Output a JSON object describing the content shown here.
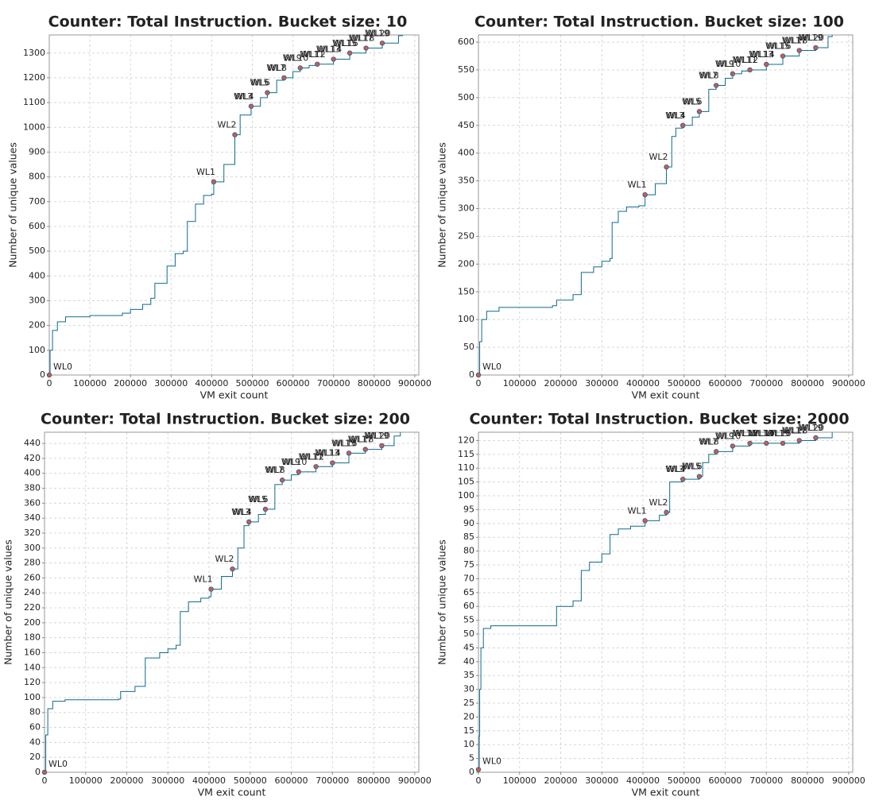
{
  "chart_data": [
    {
      "type": "line",
      "step": true,
      "title": "Counter: Total Instruction. Bucket size: 10",
      "x_label": "VM exit count",
      "y_label": "Number of unique values",
      "color": "#0e6b8c",
      "grid": true,
      "xlim": [
        0,
        910000
      ],
      "xticks": [
        0,
        100000,
        200000,
        300000,
        400000,
        500000,
        600000,
        700000,
        800000,
        900000
      ],
      "ylim": [
        0,
        1373
      ],
      "yticks": [
        0,
        100,
        200,
        300,
        400,
        500,
        600,
        700,
        800,
        900,
        1000,
        1100,
        1200,
        1300
      ],
      "x": [
        0,
        2000,
        8000,
        20000,
        40000,
        100000,
        180000,
        200000,
        230000,
        250000,
        260000,
        290000,
        310000,
        330000,
        340000,
        360000,
        380000,
        400000,
        405000,
        430000,
        457000,
        470000,
        497000,
        520000,
        537000,
        560000,
        578000,
        600000,
        618000,
        640000,
        660000,
        700000,
        740000,
        780000,
        820000,
        860000,
        870000
      ],
      "values": [
        0,
        100,
        180,
        215,
        235,
        240,
        250,
        265,
        285,
        310,
        370,
        440,
        490,
        500,
        620,
        690,
        725,
        730,
        780,
        850,
        970,
        1050,
        1085,
        1120,
        1140,
        1190,
        1200,
        1225,
        1240,
        1250,
        1255,
        1275,
        1300,
        1320,
        1340,
        1370,
        1373
      ],
      "markers": {
        "color": "#d9534f",
        "x": [
          0,
          405000,
          457000,
          497000,
          537000,
          578000,
          618000,
          660000,
          700000,
          740000,
          780000,
          820000
        ],
        "values": [
          0,
          780,
          970,
          1085,
          1140,
          1200,
          1240,
          1255,
          1275,
          1300,
          1320,
          1340
        ],
        "labels": [
          [
            "WL0"
          ],
          [
            "WL1"
          ],
          [
            "WL2"
          ],
          [
            "WL3",
            "WL4"
          ],
          [
            "WL5",
            "WL6"
          ],
          [
            "WL7",
            "WL8"
          ],
          [
            "WL9",
            "WL10"
          ],
          [
            "WL11",
            "WL12"
          ],
          [
            "WL13",
            "WL14"
          ],
          [
            "WL15",
            "WL16"
          ],
          [
            "WL17",
            "WL18"
          ],
          [
            "WL19",
            "WL20"
          ]
        ]
      }
    },
    {
      "type": "line",
      "step": true,
      "title": "Counter: Total Instruction. Bucket size: 100",
      "x_label": "VM exit count",
      "y_label": "Number of unique values",
      "color": "#0e6b8c",
      "grid": true,
      "xlim": [
        0,
        910000
      ],
      "xticks": [
        0,
        100000,
        200000,
        300000,
        400000,
        500000,
        600000,
        700000,
        800000,
        900000
      ],
      "ylim": [
        0,
        613
      ],
      "yticks": [
        0,
        50,
        100,
        150,
        200,
        250,
        300,
        350,
        400,
        450,
        500,
        550,
        600
      ],
      "x": [
        0,
        3000,
        8000,
        20000,
        50000,
        180000,
        190000,
        230000,
        250000,
        280000,
        300000,
        320000,
        325000,
        340000,
        360000,
        390000,
        405000,
        430000,
        457000,
        470000,
        480000,
        497000,
        520000,
        537000,
        560000,
        578000,
        600000,
        618000,
        640000,
        660000,
        700000,
        740000,
        780000,
        820000,
        850000,
        860000
      ],
      "values": [
        0,
        60,
        100,
        115,
        122,
        125,
        135,
        145,
        185,
        195,
        205,
        210,
        275,
        295,
        303,
        305,
        325,
        345,
        375,
        430,
        445,
        450,
        465,
        475,
        515,
        522,
        535,
        543,
        548,
        550,
        560,
        575,
        585,
        590,
        610,
        613
      ],
      "markers": {
        "color": "#d9534f",
        "x": [
          0,
          405000,
          457000,
          497000,
          537000,
          578000,
          618000,
          660000,
          700000,
          740000,
          780000,
          820000
        ],
        "values": [
          0,
          325,
          375,
          450,
          475,
          522,
          543,
          550,
          560,
          575,
          585,
          590
        ],
        "labels": [
          [
            "WL0"
          ],
          [
            "WL1"
          ],
          [
            "WL2"
          ],
          [
            "WL3",
            "WL4"
          ],
          [
            "WL5",
            "WL6"
          ],
          [
            "WL7",
            "WL8"
          ],
          [
            "WL9",
            "WL10"
          ],
          [
            "WL11",
            "WL12"
          ],
          [
            "WL13",
            "WL14"
          ],
          [
            "WL15",
            "WL16"
          ],
          [
            "WL17",
            "WL18"
          ],
          [
            "WL19",
            "WL20"
          ]
        ]
      }
    },
    {
      "type": "line",
      "step": true,
      "title": "Counter: Total Instruction. Bucket size: 200",
      "x_label": "VM exit count",
      "y_label": "Number of unique values",
      "color": "#0e6b8c",
      "grid": true,
      "xlim": [
        0,
        910000
      ],
      "xticks": [
        0,
        100000,
        200000,
        300000,
        400000,
        500000,
        600000,
        700000,
        800000,
        900000
      ],
      "ylim": [
        0,
        455
      ],
      "yticks": [
        0,
        20,
        40,
        60,
        80,
        100,
        120,
        140,
        160,
        180,
        200,
        220,
        240,
        260,
        280,
        300,
        320,
        340,
        360,
        380,
        400,
        420,
        440
      ],
      "x": [
        0,
        3000,
        8000,
        20000,
        50000,
        180000,
        185000,
        220000,
        245000,
        280000,
        300000,
        320000,
        330000,
        350000,
        380000,
        400000,
        405000,
        430000,
        457000,
        470000,
        485000,
        497000,
        520000,
        537000,
        560000,
        578000,
        600000,
        618000,
        660000,
        700000,
        740000,
        780000,
        820000,
        850000,
        865000
      ],
      "values": [
        0,
        50,
        85,
        95,
        97,
        98,
        108,
        115,
        153,
        160,
        165,
        170,
        215,
        228,
        233,
        235,
        245,
        262,
        272,
        300,
        330,
        335,
        345,
        352,
        385,
        391,
        398,
        402,
        409,
        414,
        427,
        432,
        437,
        450,
        455
      ],
      "markers": {
        "color": "#d9534f",
        "x": [
          0,
          405000,
          457000,
          497000,
          537000,
          578000,
          618000,
          660000,
          700000,
          740000,
          780000,
          820000
        ],
        "values": [
          0,
          245,
          272,
          335,
          352,
          391,
          402,
          409,
          414,
          427,
          432,
          437
        ],
        "labels": [
          [
            "WL0"
          ],
          [
            "WL1"
          ],
          [
            "WL2"
          ],
          [
            "WL3",
            "WL4"
          ],
          [
            "WL5",
            "WL6"
          ],
          [
            "WL7",
            "WL8"
          ],
          [
            "WL9",
            "WL10"
          ],
          [
            "WL11",
            "WL12"
          ],
          [
            "WL13",
            "WL14"
          ],
          [
            "WL15",
            "WL16"
          ],
          [
            "WL17",
            "WL18"
          ],
          [
            "WL19",
            "WL20"
          ]
        ]
      }
    },
    {
      "type": "line",
      "step": true,
      "title": "Counter: Total Instruction. Bucket size: 2000",
      "x_label": "VM exit count",
      "y_label": "Number of unique values",
      "color": "#0e6b8c",
      "grid": true,
      "xlim": [
        0,
        910000
      ],
      "xticks": [
        0,
        100000,
        200000,
        300000,
        400000,
        500000,
        600000,
        700000,
        800000,
        900000
      ],
      "ylim": [
        0,
        123
      ],
      "yticks": [
        0,
        5,
        10,
        15,
        20,
        25,
        30,
        35,
        40,
        45,
        50,
        55,
        60,
        65,
        70,
        75,
        80,
        85,
        90,
        95,
        100,
        105,
        110,
        115,
        120
      ],
      "x": [
        0,
        2000,
        3000,
        6000,
        12000,
        30000,
        185000,
        190000,
        230000,
        250000,
        270000,
        300000,
        320000,
        340000,
        370000,
        405000,
        440000,
        457000,
        465000,
        497000,
        537000,
        545000,
        560000,
        578000,
        618000,
        660000,
        700000,
        740000,
        780000,
        820000,
        860000
      ],
      "values": [
        1,
        13,
        30,
        45,
        52,
        53,
        53,
        60,
        62,
        73,
        76,
        79,
        86,
        88,
        89,
        91,
        93,
        94,
        105,
        106,
        107,
        112,
        115,
        116,
        118,
        119,
        119,
        119,
        120,
        121,
        123
      ],
      "markers": {
        "color": "#d9534f",
        "x": [
          0,
          405000,
          457000,
          497000,
          537000,
          578000,
          618000,
          660000,
          700000,
          740000,
          780000,
          820000
        ],
        "values": [
          1,
          91,
          94,
          106,
          107,
          116,
          118,
          119,
          119,
          119,
          120,
          121
        ],
        "labels": [
          [
            "WL0"
          ],
          [
            "WL1"
          ],
          [
            "WL2"
          ],
          [
            "WL3",
            "WL4"
          ],
          [
            "WL5",
            "WL6"
          ],
          [
            "WL7",
            "WL8"
          ],
          [
            "WL9",
            "WL10"
          ],
          [
            "WL11",
            "WL12"
          ],
          [
            "WL13",
            "WL14"
          ],
          [
            "WL15",
            "WL16"
          ],
          [
            "WL17",
            "WL18"
          ],
          [
            "WL19",
            "WL20"
          ]
        ]
      }
    }
  ]
}
